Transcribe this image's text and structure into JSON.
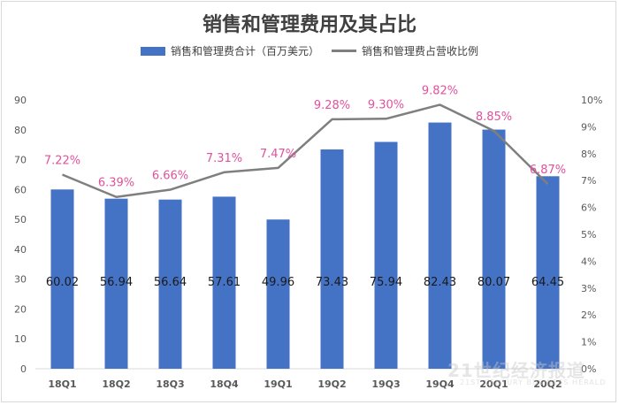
{
  "chart_data": {
    "type": "bar+line",
    "title": "销售和管理费用及其占比",
    "categories": [
      "18Q1",
      "18Q2",
      "18Q3",
      "18Q4",
      "19Q1",
      "19Q2",
      "19Q3",
      "19Q4",
      "20Q1",
      "20Q2"
    ],
    "series": [
      {
        "name": "销售和管理费合计（百万美元）",
        "type": "bar",
        "axis": "left",
        "values": [
          60.02,
          56.94,
          56.64,
          57.61,
          49.96,
          73.43,
          75.94,
          82.43,
          80.07,
          64.45
        ],
        "labels": [
          "60.02",
          "56.94",
          "56.64",
          "57.61",
          "49.96",
          "73.43",
          "75.94",
          "82.43",
          "80.07",
          "64.45"
        ]
      },
      {
        "name": "销售和管理费占营收比例",
        "type": "line",
        "axis": "right",
        "values": [
          7.22,
          6.39,
          6.66,
          7.31,
          7.47,
          9.28,
          9.3,
          9.82,
          8.85,
          6.87
        ],
        "labels": [
          "7.22%",
          "6.39%",
          "6.66%",
          "7.31%",
          "7.47%",
          "9.28%",
          "9.30%",
          "9.82%",
          "8.85%",
          "6.87%"
        ]
      }
    ],
    "y_left": {
      "ylim": [
        0,
        90
      ],
      "ticks": [
        "0",
        "10",
        "20",
        "30",
        "40",
        "50",
        "60",
        "70",
        "80",
        "90"
      ]
    },
    "y_right": {
      "ylim": [
        0,
        10
      ],
      "ticks": [
        "0%",
        "1%",
        "2%",
        "3%",
        "4%",
        "5%",
        "6%",
        "7%",
        "8%",
        "9%",
        "10%"
      ]
    },
    "legend_position": "top-center",
    "colors": {
      "bar": "#4472c4",
      "line": "#7f7f7f",
      "line_label": "#e0529c",
      "axis_text": "#595959",
      "bar_label": "#1a1a1a"
    }
  },
  "watermark": {
    "text": "21世纪经济报道",
    "subtext": "21ST CENTURY BUSINESS HERALD"
  }
}
